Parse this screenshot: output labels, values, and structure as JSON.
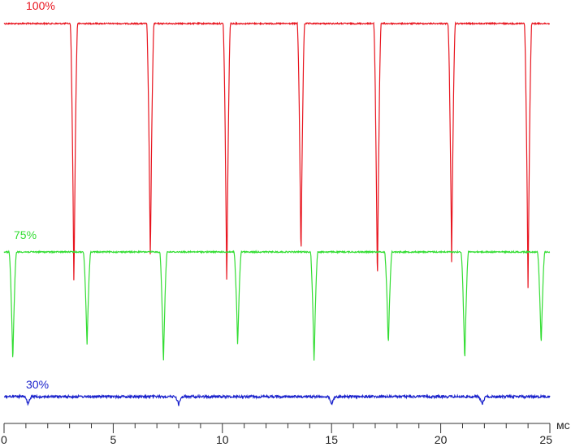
{
  "chart_data": {
    "type": "line",
    "xlabel": "мс",
    "xlim": [
      0,
      25
    ],
    "x_ticks": [
      0,
      5,
      10,
      15,
      20,
      25
    ],
    "x_tick_labels": [
      "0",
      "5",
      "10",
      "15",
      "20",
      "25"
    ],
    "grid": false,
    "legend": "inline labels at left of each trace",
    "series": [
      {
        "name": "100%",
        "color": "#e8141e",
        "high_level": 1.0,
        "low_level": 0.0,
        "dip_times_ms": [
          3.2,
          6.7,
          10.2,
          13.6,
          17.1,
          20.5,
          24.0
        ],
        "dip_depths": [
          1.0,
          0.9,
          1.0,
          0.9,
          1.0,
          0.9,
          1.0
        ]
      },
      {
        "name": "75%",
        "color": "#33dd33",
        "high_level": 1.0,
        "low_level": 0.0,
        "dip_times_ms": [
          0.4,
          3.8,
          7.3,
          10.7,
          14.2,
          17.6,
          21.1,
          24.6
        ],
        "dip_depths": [
          1.0,
          0.85,
          1.0,
          0.85,
          1.0,
          0.85,
          1.0,
          0.85
        ]
      },
      {
        "name": "30%",
        "color": "#1a22cc",
        "high_level": 1.0,
        "low_level": 0.0,
        "dip_times_ms": [
          1.1,
          8.0,
          15.0,
          21.9
        ],
        "dip_depths": [
          1.0,
          1.0,
          1.0,
          1.0
        ]
      }
    ]
  }
}
